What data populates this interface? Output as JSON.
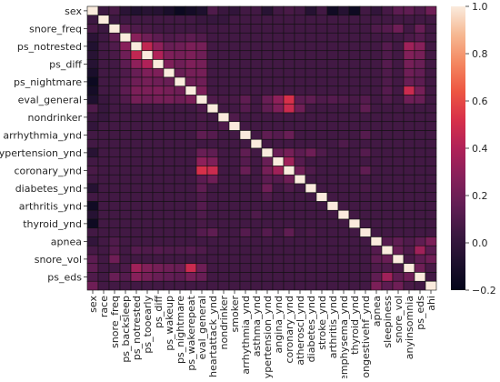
{
  "chart_data": {
    "type": "heatmap",
    "title": "",
    "xlabel": "",
    "ylabel": "",
    "labels": [
      "sex",
      "race",
      "snore_freq",
      "ps_backsleep",
      "ps_notrested",
      "ps_tooearly",
      "ps_diff",
      "ps_wakeup",
      "ps_nightmare",
      "ps_wakerepeat",
      "eval_general",
      "heartattack_ynd",
      "nondrinker",
      "smoker",
      "arrhythmia_ynd",
      "asthma_ynd",
      "hypertension_ynd",
      "angina_ynd",
      "coronary_ynd",
      "atheroscl_ynd",
      "diabetes_ynd",
      "stroke_ynd",
      "arthritis_ynd",
      "emphysema_ynd",
      "thyroid_ynd",
      "congestivehf_ynd",
      "apnea",
      "sleepiness",
      "snore_vol",
      "anyinsomnia",
      "ps_eds",
      "ahi"
    ],
    "y_tick_labels": [
      "sex",
      "snore_freq",
      "ps_notrested",
      "ps_diff",
      "ps_nightmare",
      "eval_general",
      "nondrinker",
      "arrhythmia_ynd",
      "hypertension_ynd",
      "coronary_ynd",
      "diabetes_ynd",
      "arthritis_ynd",
      "thyroid_ynd",
      "apnea",
      "snore_vol",
      "ps_eds"
    ],
    "diagonal": 1.0,
    "default_value": 0.06,
    "symmetric_values": [
      [
        0,
        1,
        0.04
      ],
      [
        0,
        2,
        0.08
      ],
      [
        0,
        3,
        -0.03
      ],
      [
        0,
        4,
        -0.07
      ],
      [
        0,
        5,
        -0.04
      ],
      [
        0,
        6,
        -0.05
      ],
      [
        0,
        7,
        -0.1
      ],
      [
        0,
        8,
        -0.16
      ],
      [
        0,
        9,
        -0.12
      ],
      [
        0,
        10,
        -0.08
      ],
      [
        0,
        11,
        0.1
      ],
      [
        0,
        12,
        0.03
      ],
      [
        0,
        13,
        0.0
      ],
      [
        0,
        16,
        -0.04
      ],
      [
        0,
        18,
        0.08
      ],
      [
        0,
        20,
        -0.05
      ],
      [
        0,
        22,
        -0.14
      ],
      [
        0,
        23,
        -0.05
      ],
      [
        0,
        24,
        -0.15
      ],
      [
        0,
        26,
        0.0
      ],
      [
        0,
        27,
        0.07
      ],
      [
        0,
        28,
        0.14
      ],
      [
        0,
        29,
        0.15
      ],
      [
        0,
        30,
        0.1
      ],
      [
        0,
        31,
        0.2
      ],
      [
        1,
        2,
        0.04
      ],
      [
        1,
        3,
        0.05
      ],
      [
        1,
        10,
        0.03
      ],
      [
        1,
        11,
        0.02
      ],
      [
        1,
        12,
        0.02
      ],
      [
        1,
        31,
        0.06
      ],
      [
        2,
        3,
        0.15
      ],
      [
        2,
        4,
        0.1
      ],
      [
        2,
        5,
        0.08
      ],
      [
        2,
        26,
        0.1
      ],
      [
        2,
        27,
        0.12
      ],
      [
        2,
        28,
        0.2
      ],
      [
        2,
        29,
        0.06
      ],
      [
        2,
        30,
        0.18
      ],
      [
        3,
        4,
        0.28
      ],
      [
        3,
        5,
        0.2
      ],
      [
        3,
        6,
        0.14
      ],
      [
        3,
        7,
        0.1
      ],
      [
        3,
        8,
        0.12
      ],
      [
        3,
        9,
        0.14
      ],
      [
        3,
        10,
        0.11
      ],
      [
        3,
        29,
        0.09
      ],
      [
        3,
        30,
        0.12
      ],
      [
        4,
        5,
        0.45
      ],
      [
        4,
        6,
        0.3
      ],
      [
        4,
        7,
        0.18
      ],
      [
        4,
        8,
        0.2
      ],
      [
        4,
        9,
        0.24
      ],
      [
        4,
        10,
        0.22
      ],
      [
        4,
        27,
        0.12
      ],
      [
        4,
        29,
        0.35
      ],
      [
        4,
        30,
        0.28
      ],
      [
        5,
        6,
        0.4
      ],
      [
        5,
        7,
        0.25
      ],
      [
        5,
        8,
        0.22
      ],
      [
        5,
        9,
        0.24
      ],
      [
        5,
        10,
        0.2
      ],
      [
        5,
        27,
        0.1
      ],
      [
        5,
        29,
        0.26
      ],
      [
        5,
        30,
        0.22
      ],
      [
        6,
        7,
        0.25
      ],
      [
        6,
        8,
        0.2
      ],
      [
        6,
        9,
        0.25
      ],
      [
        6,
        10,
        0.22
      ],
      [
        6,
        27,
        0.12
      ],
      [
        6,
        29,
        0.22
      ],
      [
        6,
        30,
        0.18
      ],
      [
        7,
        8,
        0.18
      ],
      [
        7,
        9,
        0.22
      ],
      [
        7,
        10,
        0.22
      ],
      [
        7,
        27,
        0.1
      ],
      [
        7,
        29,
        0.2
      ],
      [
        7,
        30,
        0.16
      ],
      [
        8,
        9,
        0.2
      ],
      [
        8,
        10,
        0.2
      ],
      [
        8,
        27,
        0.1
      ],
      [
        8,
        29,
        0.18
      ],
      [
        8,
        30,
        0.14
      ],
      [
        9,
        10,
        0.24
      ],
      [
        9,
        27,
        0.12
      ],
      [
        9,
        29,
        0.48
      ],
      [
        9,
        30,
        0.22
      ],
      [
        10,
        11,
        0.1
      ],
      [
        10,
        12,
        0.08
      ],
      [
        10,
        13,
        0.08
      ],
      [
        10,
        14,
        0.15
      ],
      [
        10,
        16,
        0.18
      ],
      [
        10,
        17,
        0.3
      ],
      [
        10,
        18,
        0.52
      ],
      [
        10,
        19,
        0.14
      ],
      [
        10,
        20,
        0.15
      ],
      [
        10,
        21,
        0.1
      ],
      [
        10,
        22,
        0.12
      ],
      [
        10,
        23,
        0.1
      ],
      [
        10,
        24,
        0.08
      ],
      [
        10,
        25,
        0.12
      ],
      [
        10,
        27,
        0.1
      ],
      [
        10,
        29,
        0.2
      ],
      [
        10,
        30,
        0.18
      ],
      [
        11,
        14,
        0.12
      ],
      [
        11,
        16,
        0.15
      ],
      [
        11,
        17,
        0.25
      ],
      [
        11,
        18,
        0.48
      ],
      [
        11,
        19,
        0.2
      ],
      [
        11,
        25,
        0.15
      ],
      [
        12,
        13,
        0.1
      ],
      [
        12,
        16,
        0.06
      ],
      [
        14,
        16,
        0.15
      ],
      [
        14,
        17,
        0.12
      ],
      [
        14,
        18,
        0.18
      ],
      [
        14,
        25,
        0.12
      ],
      [
        15,
        16,
        0.06
      ],
      [
        15,
        23,
        0.1
      ],
      [
        16,
        17,
        0.18
      ],
      [
        16,
        18,
        0.22
      ],
      [
        16,
        19,
        0.14
      ],
      [
        16,
        20,
        0.2
      ],
      [
        16,
        21,
        0.1
      ],
      [
        16,
        25,
        0.12
      ],
      [
        17,
        18,
        0.35
      ],
      [
        17,
        19,
        0.12
      ],
      [
        18,
        19,
        0.2
      ],
      [
        18,
        20,
        0.1
      ],
      [
        18,
        25,
        0.15
      ],
      [
        20,
        22,
        0.06
      ],
      [
        20,
        25,
        0.08
      ],
      [
        22,
        24,
        0.06
      ],
      [
        26,
        27,
        0.12
      ],
      [
        26,
        28,
        0.15
      ],
      [
        26,
        29,
        0.1
      ],
      [
        26,
        30,
        0.15
      ],
      [
        26,
        31,
        0.24
      ],
      [
        27,
        28,
        0.18
      ],
      [
        27,
        29,
        0.1
      ],
      [
        27,
        30,
        0.35
      ],
      [
        27,
        31,
        0.14
      ],
      [
        28,
        29,
        0.08
      ],
      [
        28,
        30,
        0.15
      ],
      [
        28,
        31,
        0.2
      ],
      [
        29,
        30,
        0.2
      ],
      [
        29,
        31,
        0.08
      ],
      [
        30,
        31,
        0.06
      ]
    ],
    "colorbar": {
      "min": -0.2,
      "max": 1.0,
      "ticks": [
        "1.0",
        "0.8",
        "0.6",
        "0.4",
        "0.2",
        "0.0",
        "−0.2"
      ],
      "tick_values": [
        1.0,
        0.8,
        0.6,
        0.4,
        0.2,
        0.0,
        -0.2
      ]
    },
    "colormap": "rocket",
    "grid": true,
    "legend": "colorbar-right"
  }
}
